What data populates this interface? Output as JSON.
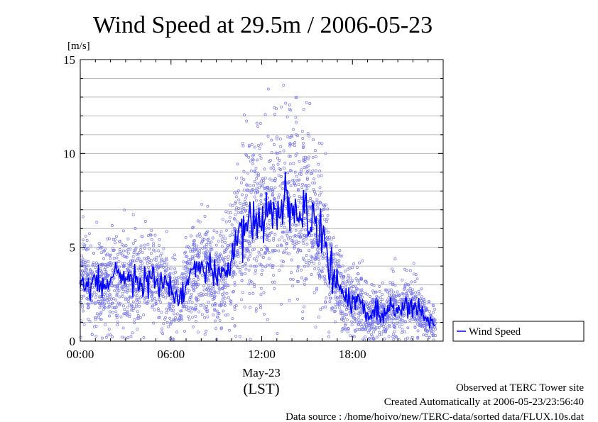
{
  "chart_data": {
    "type": "line",
    "title": "Wind Speed at 29.5m / 2006-05-23",
    "ylabel": "[m/s]",
    "xlabel_date": "May-23",
    "xlabel_zone": "(LST)",
    "ylim": [
      0,
      15
    ],
    "yticks": [
      "0",
      "5",
      "10",
      "15"
    ],
    "xlim_hours": [
      0,
      24
    ],
    "xticks": [
      {
        "hour": 0,
        "label": "00:00"
      },
      {
        "hour": 6,
        "label": "06:00"
      },
      {
        "hour": 12,
        "label": "12:00"
      },
      {
        "hour": 18,
        "label": "18:00"
      }
    ],
    "grid": true,
    "legend": "outside-right-bottom",
    "series": [
      {
        "name": "Wind Speed",
        "color": "#0000ff",
        "scatter_color": "#7777ee",
        "x_hours": [
          0,
          0.5,
          1,
          1.5,
          2,
          2.5,
          3,
          3.5,
          4,
          4.5,
          5,
          5.5,
          6,
          6.5,
          7,
          7.5,
          8,
          8.5,
          9,
          9.5,
          10,
          10.5,
          11,
          11.5,
          12,
          12.5,
          13,
          13.5,
          14,
          14.5,
          15,
          15.5,
          16,
          16.5,
          17,
          17.5,
          18,
          18.5,
          19,
          19.5,
          20,
          20.5,
          21,
          21.5,
          22,
          22.5,
          23,
          23.5
        ],
        "values": [
          3.2,
          3.0,
          3.1,
          2.8,
          3.2,
          3.5,
          3.3,
          3.4,
          3.1,
          3.3,
          3.2,
          3.0,
          2.5,
          2.3,
          3.0,
          3.6,
          3.9,
          3.6,
          3.4,
          3.8,
          4.2,
          5.6,
          6.2,
          6.5,
          6.7,
          6.9,
          7.0,
          7.1,
          7.2,
          7.0,
          6.8,
          6.2,
          5.4,
          4.0,
          3.1,
          2.2,
          2.0,
          2.2,
          1.2,
          1.6,
          1.5,
          1.9,
          1.7,
          1.9,
          2.0,
          1.5,
          1.1,
          0.8
        ]
      }
    ]
  },
  "footer": {
    "line1": "Observed at TERC Tower site",
    "line2": "Created Automatically at 2006-05-23/23:56:40",
    "line3": "Data source : /home/hoivo/new/TERC-data/sorted  data/FLUX.10s.dat"
  }
}
